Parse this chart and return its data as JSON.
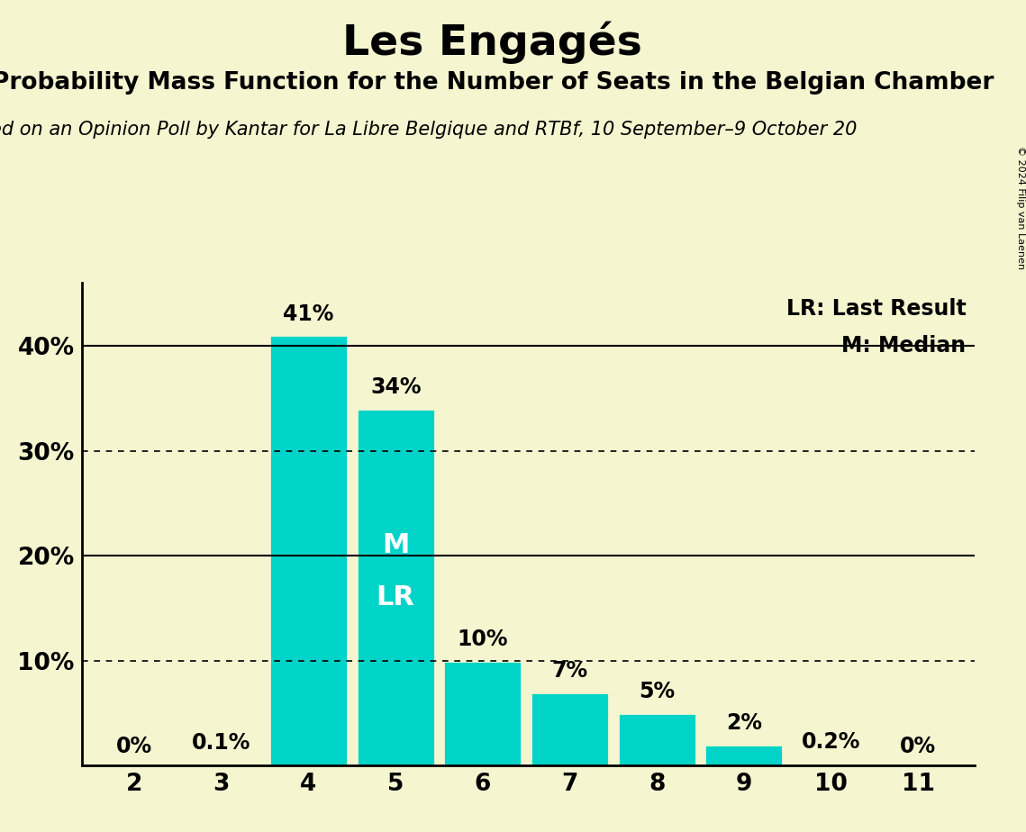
{
  "title": "Les Engagés",
  "subtitle": "Probability Mass Function for the Number of Seats in the Belgian Chamber",
  "source": "ed on an Opinion Poll by Kantar for La Libre Belgique and RTBf, 10 September–9 October 20",
  "copyright": "© 2024 Filip van Laenen",
  "seats": [
    2,
    3,
    4,
    5,
    6,
    7,
    8,
    9,
    10,
    11
  ],
  "values": [
    0.0,
    0.1,
    41.0,
    34.0,
    10.0,
    7.0,
    5.0,
    2.0,
    0.2,
    0.0
  ],
  "bar_color": "#00D4C8",
  "background_color": "#F5F5D0",
  "bar_labels": [
    "0%",
    "0.1%",
    "41%",
    "34%",
    "10%",
    "7%",
    "5%",
    "2%",
    "0.2%",
    "0%"
  ],
  "solid_lines": [
    40.0,
    20.0
  ],
  "dotted_lines": [
    30.0,
    10.0
  ],
  "median_seat": 5,
  "lr_seat": 5,
  "legend_lr": "LR: Last Result",
  "legend_m": "M: Median",
  "title_fontsize": 34,
  "subtitle_fontsize": 19,
  "source_fontsize": 15,
  "bar_label_fontsize": 17,
  "tick_fontsize": 19,
  "legend_fontsize": 17,
  "m_label_fontsize": 22,
  "lr_label_fontsize": 22,
  "ylim_max": 46,
  "xlim_min": 1.4,
  "xlim_max": 11.65
}
